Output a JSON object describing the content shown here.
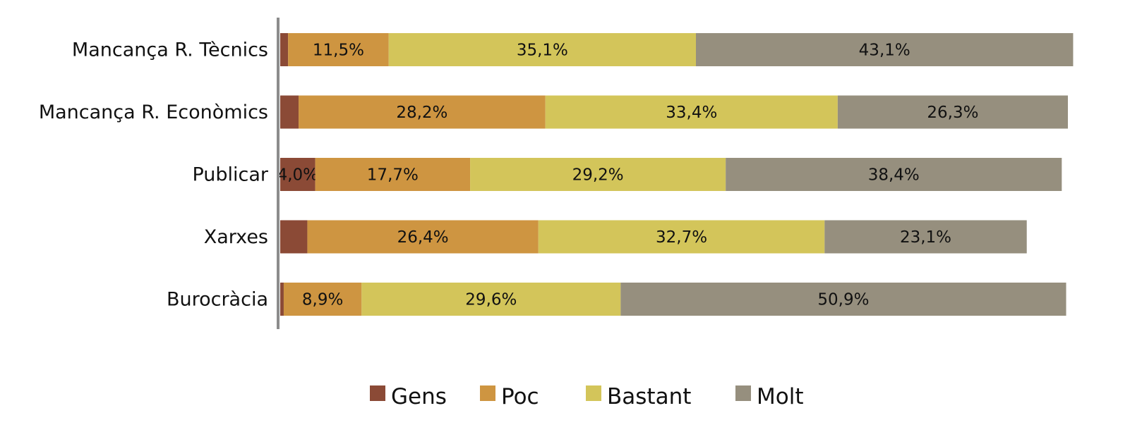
{
  "chart_data": {
    "type": "bar",
    "orientation": "horizontal",
    "stacked": true,
    "title": "",
    "xlabel": "",
    "ylabel": "",
    "xlim": [
      0,
      100
    ],
    "grid": false,
    "legend_position": "bottom",
    "categories": [
      "Mancança R. Tècnics",
      "Mancança R. Econòmics",
      "Publicar",
      "Xarxes",
      "Burocràcia"
    ],
    "series": [
      {
        "name": "Gens",
        "color": "#8B4A36",
        "values": [
          0.9,
          2.1,
          4.0,
          3.1,
          0.4
        ],
        "labels": [
          "",
          "",
          "4,0%",
          "",
          ""
        ]
      },
      {
        "name": "Poc",
        "color": "#CE9541",
        "values": [
          11.5,
          28.2,
          17.7,
          26.4,
          8.9
        ],
        "labels": [
          "11,5%",
          "28,2%",
          "17,7%",
          "26,4%",
          "8,9%"
        ]
      },
      {
        "name": "Bastant",
        "color": "#D3C55A",
        "values": [
          35.1,
          33.4,
          29.2,
          32.7,
          29.6
        ],
        "labels": [
          "35,1%",
          "33,4%",
          "29,2%",
          "32,7%",
          "29,6%"
        ]
      },
      {
        "name": "Molt",
        "color": "#968F7E",
        "values": [
          43.1,
          26.3,
          38.4,
          23.1,
          50.9
        ],
        "labels": [
          "43,1%",
          "26,3%",
          "38,4%",
          "23,1%",
          "50,9%"
        ]
      }
    ],
    "axis_color": "#8C8C8C"
  }
}
